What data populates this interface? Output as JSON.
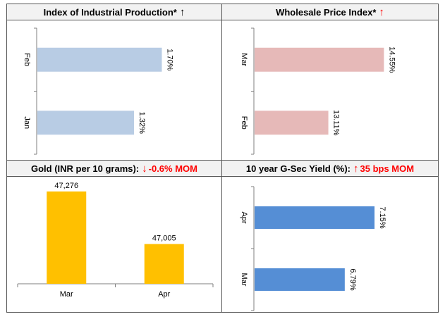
{
  "panels": {
    "iip": {
      "title": "Index of Industrial Production*",
      "arrow": "↑"
    },
    "wpi": {
      "title": "Wholesale Price Index*",
      "arrow": "↑"
    },
    "gold": {
      "title": "Gold (INR per 10 grams):",
      "arrow": "↓",
      "change": "-0.6% MOM"
    },
    "gsec": {
      "title": "10 year G-Sec Yield (%):",
      "arrow": "↑",
      "change": "35 bps MOM"
    }
  },
  "chart_data": [
    {
      "id": "iip",
      "type": "bar",
      "orientation": "horizontal",
      "categories": [
        "Feb",
        "Jan"
      ],
      "values": [
        1.7,
        1.32
      ],
      "value_labels": [
        "1.70%",
        "1.32%"
      ],
      "xlim": [
        0,
        2.1
      ],
      "color": "#b8cce4"
    },
    {
      "id": "wpi",
      "type": "bar",
      "orientation": "horizontal",
      "categories": [
        "Mar",
        "Feb"
      ],
      "values": [
        14.55,
        13.11
      ],
      "value_labels": [
        "14.55%",
        "13.11%"
      ],
      "xlim": [
        11.2,
        15.2
      ],
      "color": "#e6b9b8"
    },
    {
      "id": "gold",
      "type": "bar",
      "orientation": "vertical",
      "categories": [
        "Mar",
        "Apr"
      ],
      "values": [
        47276,
        47005
      ],
      "value_labels": [
        "47,276",
        "47,005"
      ],
      "ylim": [
        46800,
        47330
      ],
      "color": "#ffc000"
    },
    {
      "id": "gsec",
      "type": "bar",
      "orientation": "horizontal",
      "categories": [
        "Apr",
        "Mar"
      ],
      "values": [
        7.15,
        6.79
      ],
      "value_labels": [
        "7.15%",
        "6.79%"
      ],
      "xlim": [
        5.7,
        7.55
      ],
      "color": "#558ed5"
    }
  ]
}
